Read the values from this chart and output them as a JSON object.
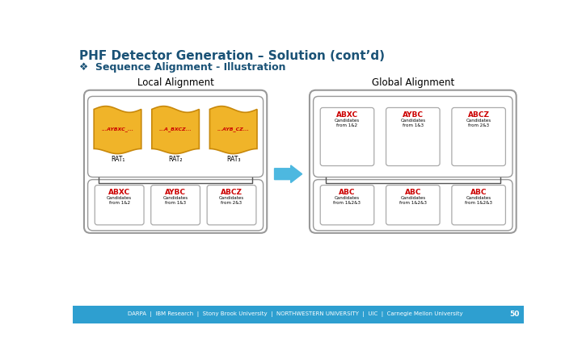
{
  "title": "PHF Detector Generation – Solution (cont’d)",
  "subtitle": "Sequence Alignment - Illustration",
  "title_color": "#1A5276",
  "subtitle_color": "#1A5276",
  "bg_color": "#FFFFFF",
  "footer_color": "#2E9FD0",
  "local_label": "Local Alignment",
  "global_label": "Global Alignment",
  "local_rats": [
    "RAT₁",
    "RAT₂",
    "RAT₃"
  ],
  "local_rat_labels": [
    "...AYBXC_...",
    "...A_BXCZ...",
    "...AYB_CZ..."
  ],
  "local_candidates": [
    "ABXC",
    "AYBC",
    "ABCZ"
  ],
  "local_cand_sub": [
    "Candidates\nfrom 1&2",
    "Candidates\nfrom 1&3",
    "Candidates\nfrom 2&3"
  ],
  "global_top_labels": [
    "ABXC",
    "AYBC",
    "ABCZ"
  ],
  "global_top_sub": [
    "Candidates\nfrom 1&2",
    "Candidates\nfrom 1&3",
    "Candidates\nfrom 2&3"
  ],
  "global_bottom_labels": [
    "ABC",
    "ABC",
    "ABC"
  ],
  "global_bottom_sub": [
    "Candidates\nfrom 1&2&3",
    "Candidates\nfrom 1&2&3",
    "Candidates\nfrom 1&2&3"
  ],
  "gold_color": "#F0B429",
  "gold_edge": "#C8880A",
  "red_color": "#CC0000",
  "arrow_color": "#4DB8E0",
  "panel_edge": "#999999",
  "box_edge": "#AAAAAA",
  "brace_color": "#555555",
  "page_number": "50"
}
